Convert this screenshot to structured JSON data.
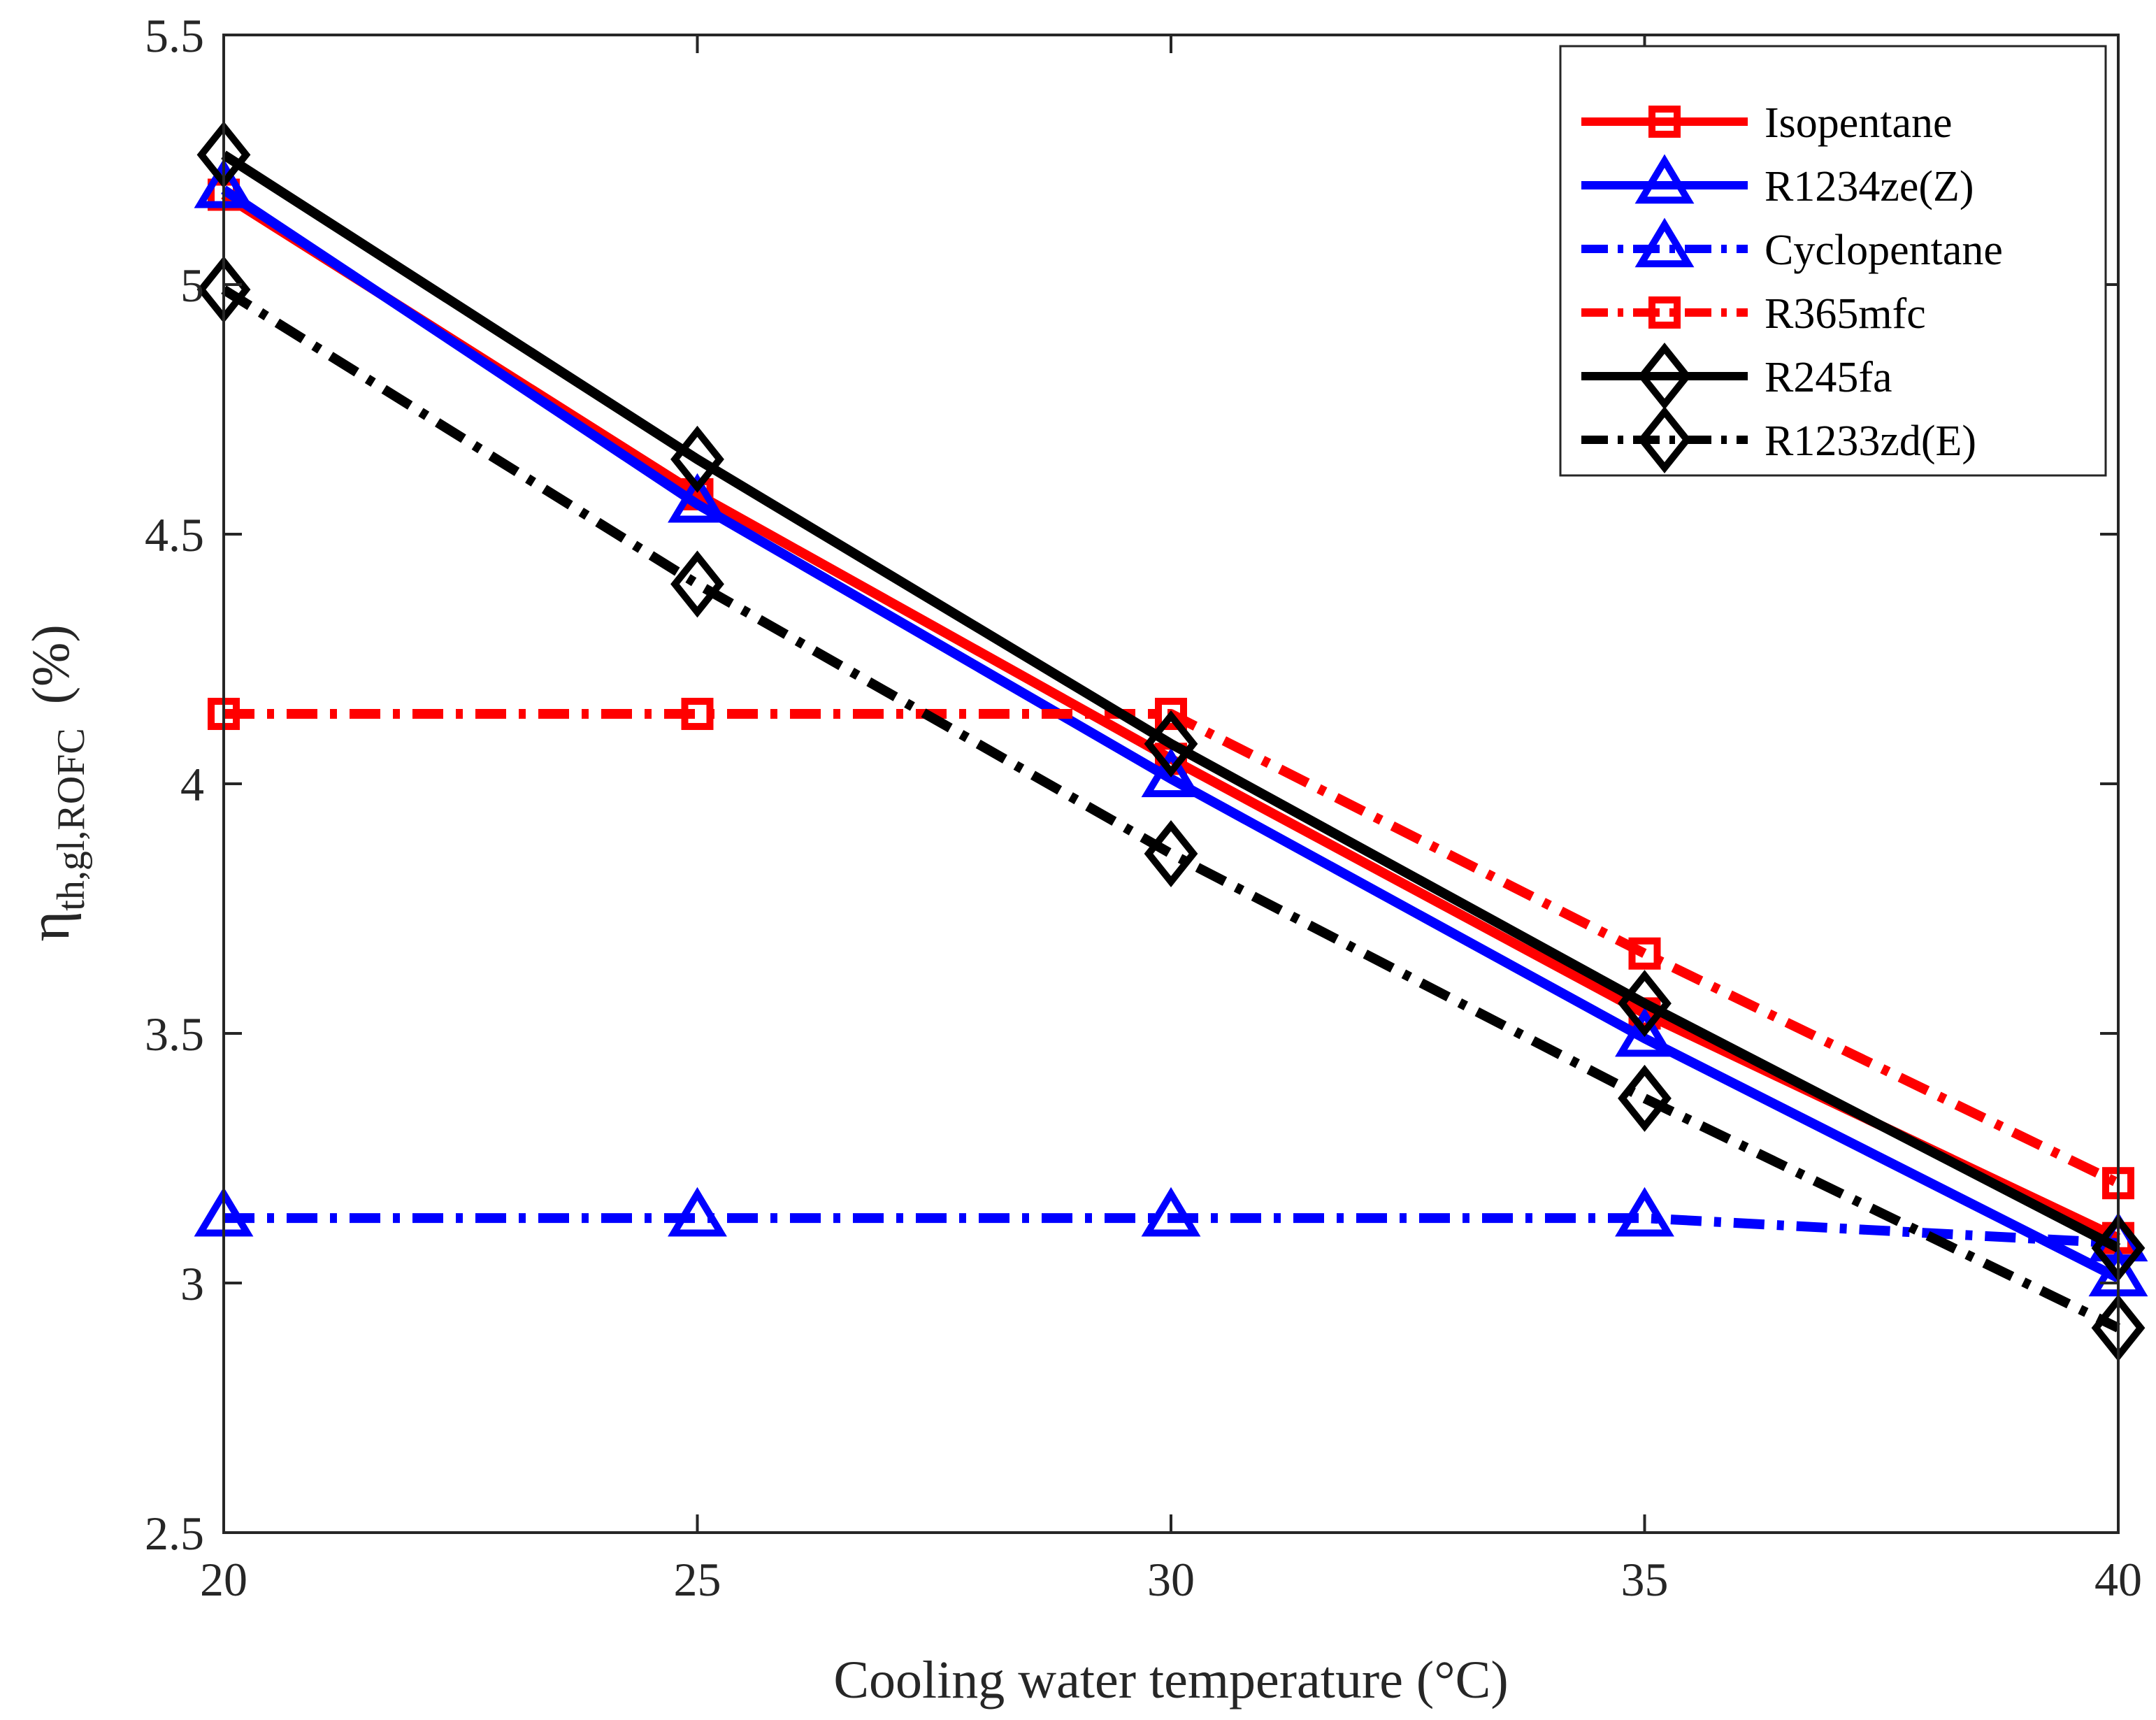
{
  "chart_data": {
    "type": "line",
    "title": "",
    "xlabel": "Cooling water temperature (°C)",
    "ylabel": {
      "symbol": "η",
      "subscript": "th,gl,ROFC",
      "unit": "(%)"
    },
    "x": [
      20,
      25,
      30,
      35,
      40
    ],
    "xlim": [
      20,
      40
    ],
    "ylim": [
      2.5,
      5.5
    ],
    "xticks": [
      20,
      25,
      30,
      35,
      40
    ],
    "yticks": [
      2.5,
      3,
      3.5,
      4,
      4.5,
      5,
      5.5
    ],
    "xtick_labels": [
      "20",
      "25",
      "30",
      "35",
      "40"
    ],
    "ytick_labels": [
      "2.5",
      "3",
      "3.5",
      "4",
      "4.5",
      "5",
      "5.5"
    ],
    "grid": false,
    "legend_position": "top-right",
    "series": [
      {
        "name": "Isopentane",
        "values": [
          5.18,
          4.58,
          4.05,
          3.54,
          3.09
        ],
        "color": "#ff0000",
        "line": "solid",
        "marker": "square"
      },
      {
        "name": "R1234ze(Z)",
        "values": [
          5.19,
          4.56,
          4.01,
          3.49,
          3.01
        ],
        "color": "#0000ff",
        "line": "solid",
        "marker": "triangle"
      },
      {
        "name": "Cyclopentane",
        "values": [
          3.13,
          3.13,
          3.13,
          3.13,
          3.08
        ],
        "color": "#0000ff",
        "line": "dashdot",
        "marker": "triangle"
      },
      {
        "name": "R365mfc",
        "values": [
          4.14,
          4.14,
          4.14,
          3.66,
          3.2
        ],
        "color": "#ff0000",
        "line": "dashdot",
        "marker": "square"
      },
      {
        "name": "R245fa",
        "values": [
          5.26,
          4.65,
          4.08,
          3.56,
          3.07
        ],
        "color": "#000000",
        "line": "solid",
        "marker": "diamond"
      },
      {
        "name": "R1233zd(E)",
        "values": [
          4.99,
          4.4,
          3.86,
          3.37,
          2.91
        ],
        "color": "#000000",
        "line": "dashdot",
        "marker": "diamond"
      }
    ]
  }
}
